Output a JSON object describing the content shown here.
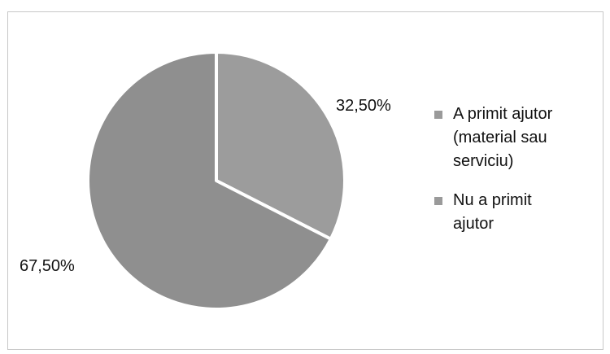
{
  "chart_data": {
    "type": "pie",
    "title": "",
    "series": [
      {
        "name": "",
        "categories": [
          "A primit ajutor (material sau serviciu)",
          "Nu a primit ajutor"
        ],
        "values": [
          32.5,
          67.5
        ],
        "labels": [
          "32,50%",
          "67,50%"
        ]
      }
    ],
    "legend": {
      "position": "right",
      "entries": [
        {
          "label_lines": [
            "A primit ajutor",
            "(material sau",
            "serviciu)"
          ]
        },
        {
          "label_lines": [
            "Nu a primit",
            "ajutor"
          ]
        }
      ]
    },
    "colors": {
      "slice_1": "#9c9c9c",
      "slice_2": "#8f8f8f",
      "slice_border": "#ffffff",
      "legend_marker": "#9a9a9a",
      "frame": "#c8c8c8"
    }
  }
}
